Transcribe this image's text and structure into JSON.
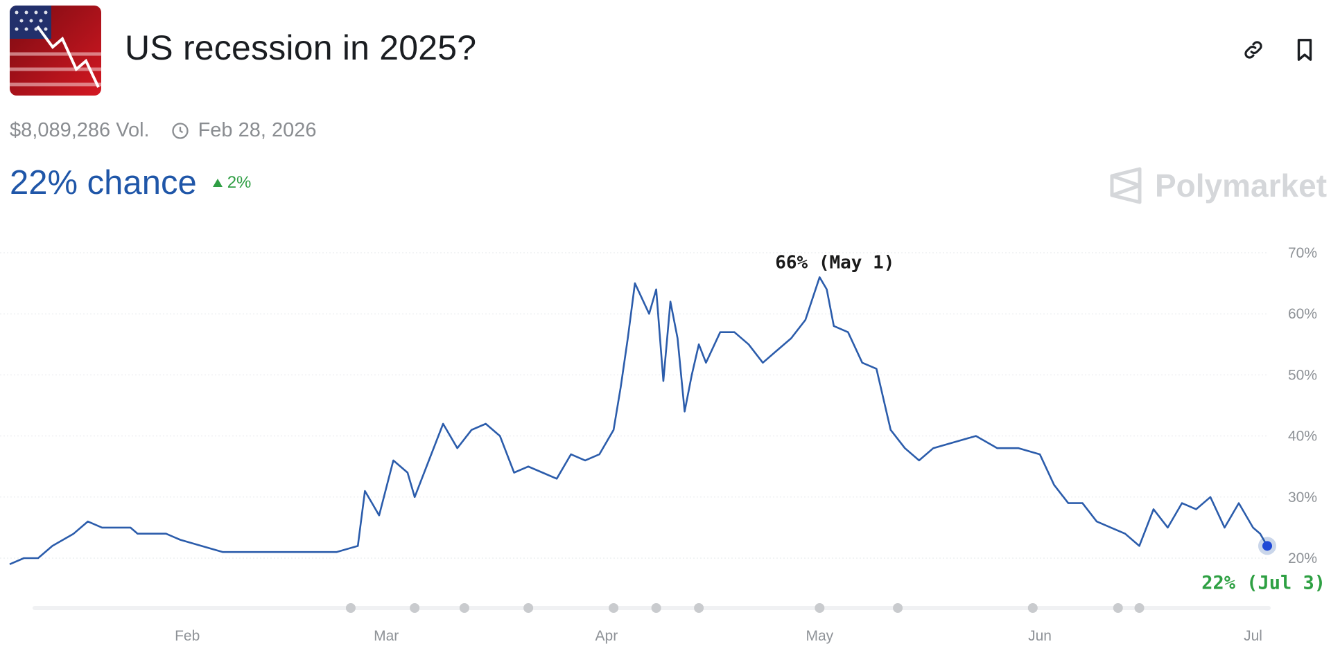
{
  "header": {
    "title": "US recession in 2025?",
    "volume": "$8,089,286 Vol.",
    "end_date": "Feb 28, 2026",
    "chance": "22% chance",
    "change": "2%",
    "brand": "Polymarket"
  },
  "icons": {
    "link": "link-icon",
    "bookmark": "bookmark-icon",
    "clock": "clock-icon",
    "delta_arrow": "triangle-up-icon",
    "brand_logo": "polymarket-logo-icon"
  },
  "colors": {
    "line": "#2b5cab",
    "chance_text": "#1f56a8",
    "positive": "#2f9e44",
    "grid": "#e6e8eb",
    "axis_text": "#8e9297"
  },
  "chart_data": {
    "type": "line",
    "title": "",
    "xlabel": "",
    "ylabel": "",
    "x_ticks": [
      "Feb",
      "Mar",
      "Apr",
      "May",
      "Jun",
      "Jul"
    ],
    "y_ticks": [
      "20%",
      "30%",
      "40%",
      "50%",
      "60%",
      "70%"
    ],
    "ylim": [
      20,
      70
    ],
    "y_unit": "%",
    "grid": true,
    "series": [
      {
        "x": [
          "2025-01-07",
          "2025-01-09",
          "2025-01-11",
          "2025-01-13",
          "2025-01-16",
          "2025-01-18",
          "2025-01-20",
          "2025-01-22",
          "2025-01-24",
          "2025-01-25",
          "2025-01-27",
          "2025-01-29",
          "2025-01-31",
          "2025-02-03",
          "2025-02-06",
          "2025-02-09",
          "2025-02-12",
          "2025-02-15",
          "2025-02-18",
          "2025-02-22",
          "2025-02-25",
          "2025-02-26",
          "2025-02-27",
          "2025-02-28",
          "2025-03-02",
          "2025-03-04",
          "2025-03-05",
          "2025-03-07",
          "2025-03-09",
          "2025-03-11",
          "2025-03-13",
          "2025-03-15",
          "2025-03-17",
          "2025-03-19",
          "2025-03-21",
          "2025-03-23",
          "2025-03-25",
          "2025-03-27",
          "2025-03-29",
          "2025-03-31",
          "2025-04-02",
          "2025-04-03",
          "2025-04-04",
          "2025-04-05",
          "2025-04-07",
          "2025-04-08",
          "2025-04-09",
          "2025-04-10",
          "2025-04-11",
          "2025-04-12",
          "2025-04-13",
          "2025-04-14",
          "2025-04-15",
          "2025-04-17",
          "2025-04-19",
          "2025-04-21",
          "2025-04-23",
          "2025-04-25",
          "2025-04-27",
          "2025-04-29",
          "2025-05-01",
          "2025-05-02",
          "2025-05-03",
          "2025-05-05",
          "2025-05-07",
          "2025-05-09",
          "2025-05-11",
          "2025-05-13",
          "2025-05-15",
          "2025-05-17",
          "2025-05-20",
          "2025-05-23",
          "2025-05-26",
          "2025-05-29",
          "2025-06-01",
          "2025-06-03",
          "2025-06-05",
          "2025-06-07",
          "2025-06-09",
          "2025-06-11",
          "2025-06-13",
          "2025-06-15",
          "2025-06-17",
          "2025-06-19",
          "2025-06-21",
          "2025-06-23",
          "2025-06-25",
          "2025-06-27",
          "2025-06-29",
          "2025-07-01",
          "2025-07-02",
          "2025-07-03"
        ],
        "y": [
          19,
          20,
          20,
          22,
          24,
          26,
          25,
          25,
          25,
          24,
          24,
          24,
          23,
          22,
          21,
          21,
          21,
          21,
          21,
          21,
          22,
          31,
          29,
          27,
          36,
          34,
          30,
          36,
          42,
          38,
          41,
          42,
          40,
          34,
          35,
          34,
          33,
          37,
          36,
          37,
          41,
          48,
          56,
          65,
          60,
          64,
          49,
          62,
          56,
          44,
          50,
          55,
          52,
          57,
          57,
          55,
          52,
          54,
          56,
          59,
          66,
          64,
          58,
          57,
          52,
          51,
          41,
          38,
          36,
          38,
          39,
          40,
          38,
          38,
          37,
          32,
          29,
          29,
          26,
          25,
          24,
          22,
          28,
          25,
          29,
          28,
          30,
          25,
          29,
          25,
          24,
          22
        ]
      }
    ],
    "annotations": [
      {
        "text": "66% (May 1)",
        "x": "2025-05-01",
        "y": 66
      },
      {
        "text": "22% (Jul 3)",
        "x": "2025-07-03",
        "y": 22
      }
    ]
  }
}
